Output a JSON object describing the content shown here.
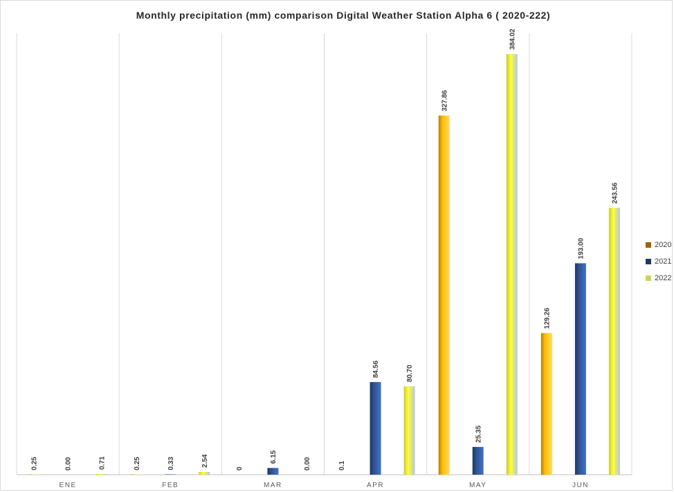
{
  "chart_data": {
    "type": "bar",
    "title": "Monthly precipitation (mm) comparison Digital Weather Station Alpha 6 ( 2020-222)",
    "xlabel": "",
    "ylabel": "",
    "categories": [
      "ENE",
      "FEB",
      "MAR",
      "APR",
      "MAY",
      "JUN"
    ],
    "ylim": [
      0,
      400
    ],
    "grid": "vertical category separators",
    "legend_position": "right",
    "series": [
      {
        "name": "2020",
        "values": [
          0.25,
          0.25,
          0,
          0.1,
          327.86,
          129.26
        ],
        "labels": [
          "0.25",
          "0.25",
          "0",
          "0.1",
          "327.86",
          "129.26"
        ],
        "color": "#ffc000",
        "legend_color": "#9c6500"
      },
      {
        "name": "2021",
        "values": [
          0.0,
          0.33,
          6.15,
          84.56,
          25.35,
          193.0
        ],
        "labels": [
          "0.00",
          "0.33",
          "6.15",
          "84.56",
          "25.35",
          "193.00"
        ],
        "color": "#2f5597",
        "legend_color": "#203864"
      },
      {
        "name": "2022",
        "values": [
          0.71,
          2.54,
          0.0,
          80.7,
          384.02,
          243.56
        ],
        "labels": [
          "0.71",
          "2.54",
          "0.00",
          "80.70",
          "384.02",
          "243.56"
        ],
        "color": "#ffff00",
        "legend_color": "#c9d65a"
      }
    ]
  }
}
